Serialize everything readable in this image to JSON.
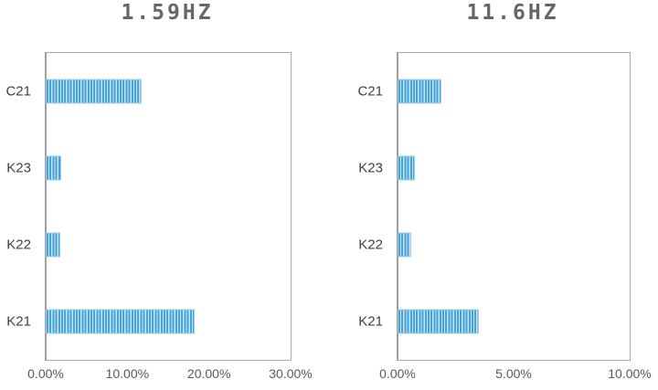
{
  "page": {
    "background": "#ffffff"
  },
  "colors": {
    "bar_stripe": "#46a2d9",
    "bar_stripe_light": "#c6e6f7",
    "bar_border": "#a5cde6",
    "plot_border": "#ababab",
    "axis_line": "#9f9f9f",
    "title_text": "#666666",
    "category_text": "#404040",
    "tick_text": "#595959"
  },
  "chart_data": [
    {
      "type": "bar",
      "orientation": "horizontal",
      "title": "1.59HZ",
      "categories": [
        "C21",
        "K23",
        "K22",
        "K21"
      ],
      "values": [
        11.8,
        1.9,
        1.8,
        18.2
      ],
      "unit": "%",
      "xlim": [
        0,
        30
      ],
      "x_ticks": [
        "0.00%",
        "10.00%",
        "20.00%",
        "30.00%"
      ],
      "grid": false,
      "legend": false,
      "bar_fill": "vertical-stripe-pattern"
    },
    {
      "type": "bar",
      "orientation": "horizontal",
      "title": "11.6HZ",
      "categories": [
        "C21",
        "K23",
        "K22",
        "K21"
      ],
      "values": [
        1.9,
        0.75,
        0.6,
        3.5
      ],
      "unit": "%",
      "xlim": [
        0,
        10
      ],
      "x_ticks": [
        "0.00%",
        "5.00%",
        "10.00%"
      ],
      "grid": false,
      "legend": false,
      "bar_fill": "vertical-stripe-pattern"
    }
  ]
}
